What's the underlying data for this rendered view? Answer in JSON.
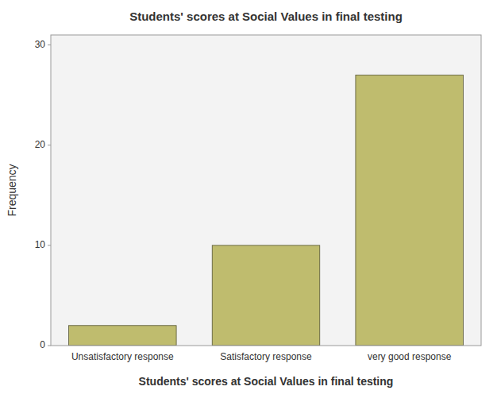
{
  "chart_data": {
    "type": "bar",
    "title": "Students' scores at Social Values in final testing",
    "xlabel": "Students' scores at Social Values in final testing",
    "ylabel": "Frequency",
    "categories": [
      "Unsatisfactory response",
      "Satisfactory response",
      "very good response"
    ],
    "values": [
      2,
      10,
      27
    ],
    "color": "#BFBC6E",
    "ylim": [
      0,
      31
    ],
    "yticks": [
      0,
      10,
      20,
      30
    ],
    "grid": false
  }
}
